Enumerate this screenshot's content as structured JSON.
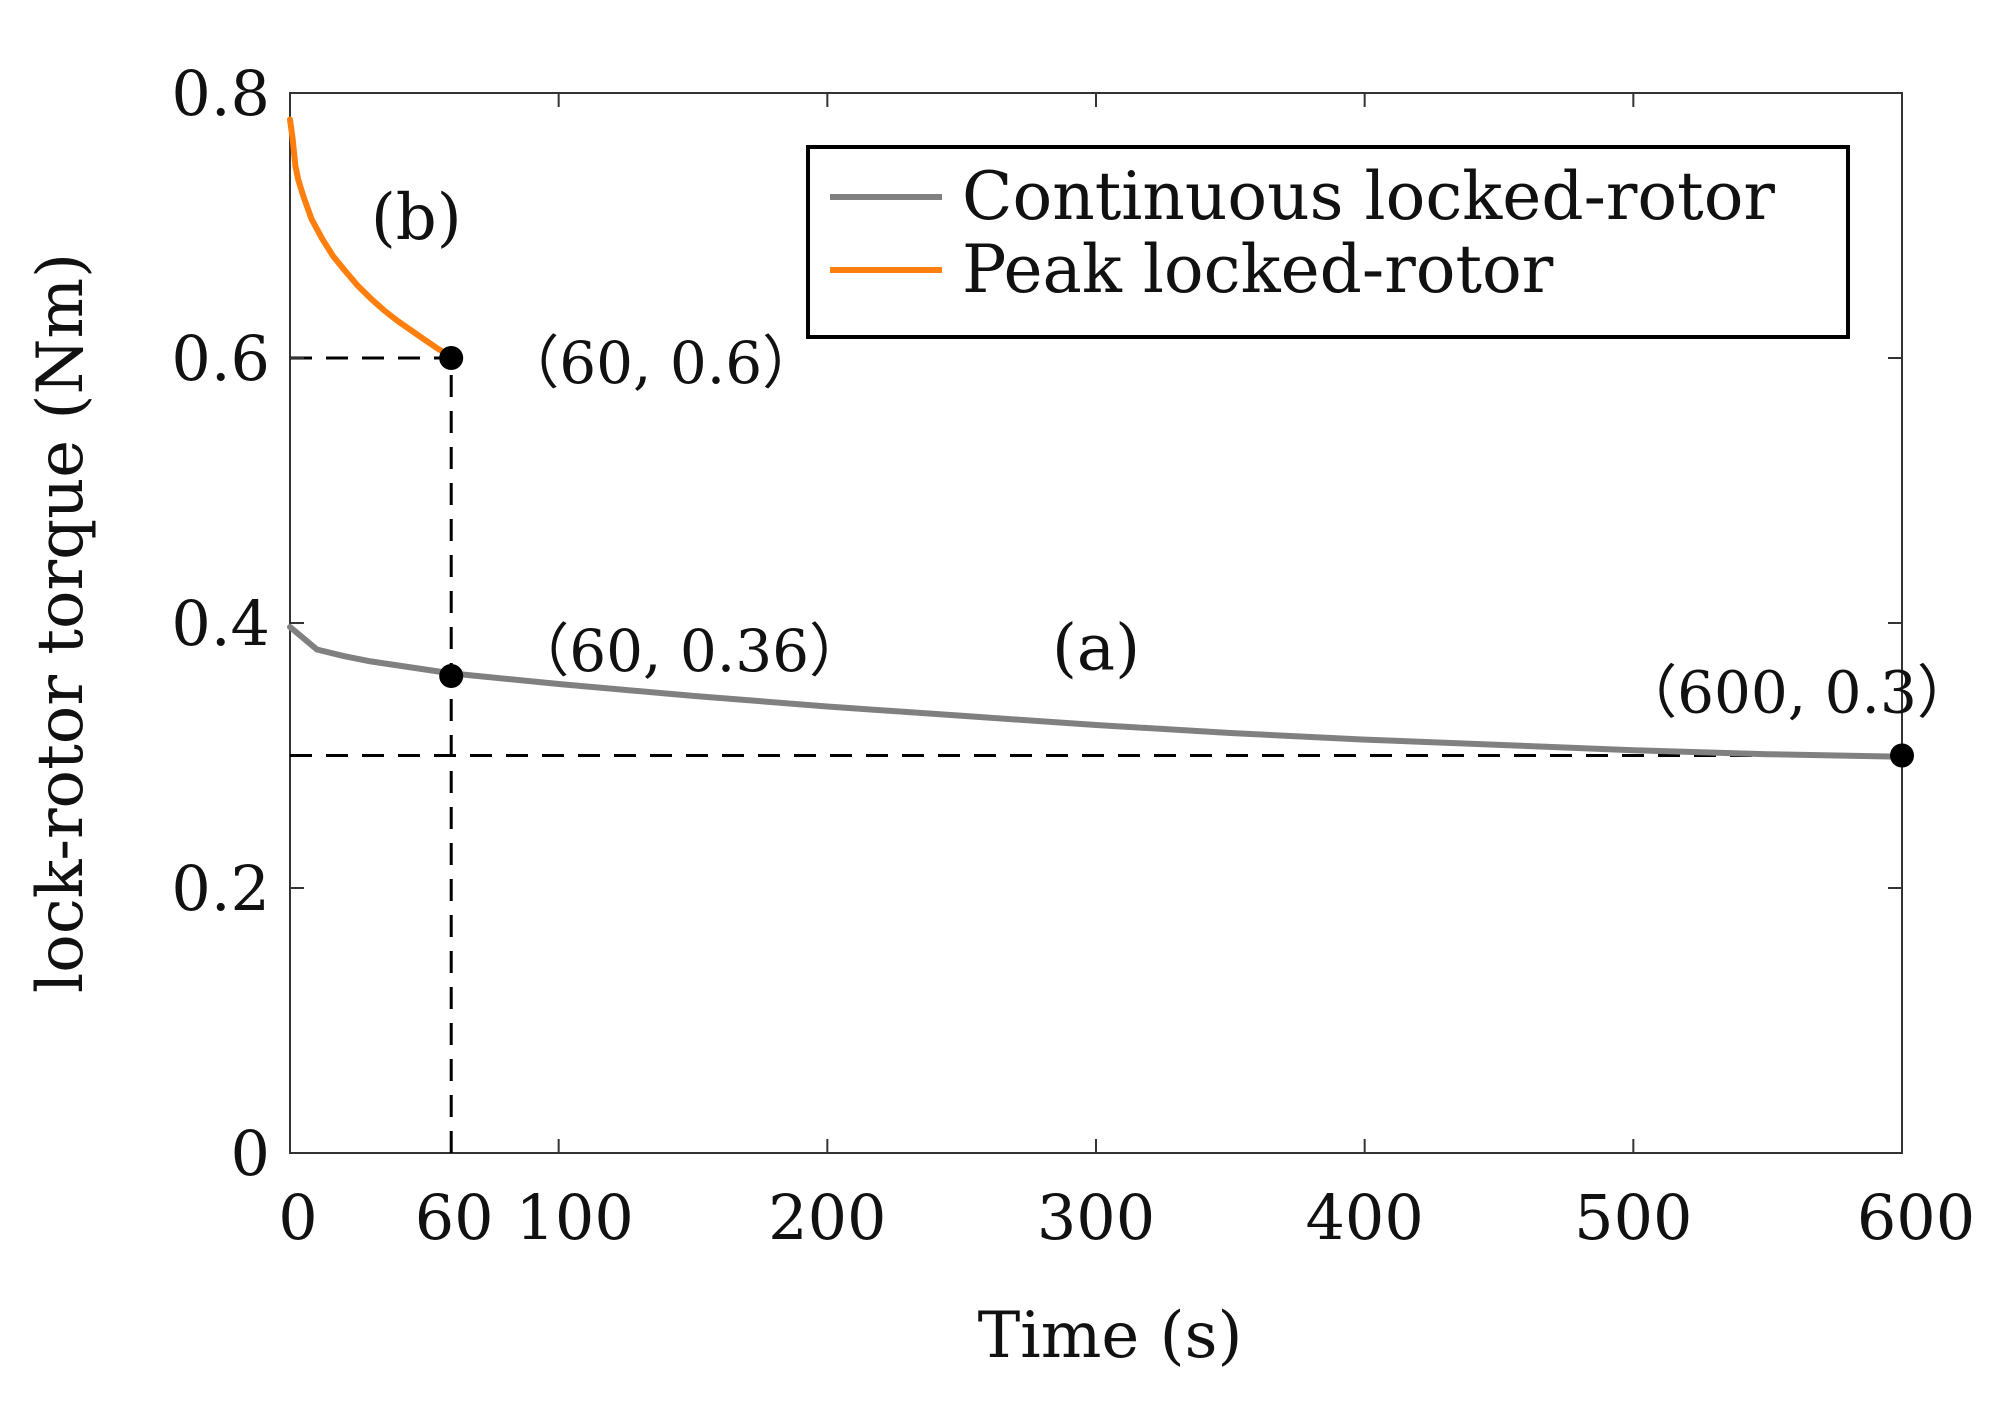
{
  "chart_data": {
    "type": "line",
    "title": "",
    "xlabel": "Time (s)",
    "ylabel": "lock-rotor torque (Nm)",
    "xlim": [
      0,
      600
    ],
    "ylim": [
      0,
      0.8
    ],
    "x_ticks": [
      0,
      60,
      100,
      200,
      300,
      400,
      500,
      600
    ],
    "x_tick_labels": [
      "0",
      "60",
      "100",
      "200",
      "300",
      "400",
      "500",
      "600"
    ],
    "y_ticks": [
      0,
      0.2,
      0.4,
      0.6,
      0.8
    ],
    "y_tick_labels": [
      "0",
      "0.2",
      "0.4",
      "0.6",
      "0.8"
    ],
    "grid": false,
    "legend_position": "top-right",
    "series": [
      {
        "name": "Continuous locked-rotor",
        "color": "#808080",
        "x": [
          0,
          10,
          20,
          30,
          40,
          50,
          60,
          100,
          150,
          200,
          250,
          300,
          350,
          400,
          450,
          500,
          550,
          600
        ],
        "y": [
          0.397,
          0.38,
          0.375,
          0.371,
          0.368,
          0.365,
          0.362,
          0.354,
          0.345,
          0.337,
          0.33,
          0.323,
          0.317,
          0.312,
          0.308,
          0.304,
          0.301,
          0.299
        ]
      },
      {
        "name": "Peak locked-rotor",
        "color": "#FF7F0E",
        "x": [
          0,
          1,
          2,
          3,
          5,
          8,
          12,
          16,
          20,
          25,
          30,
          35,
          40,
          45,
          50,
          55,
          60
        ],
        "y": [
          0.78,
          0.765,
          0.745,
          0.735,
          0.722,
          0.705,
          0.69,
          0.677,
          0.667,
          0.655,
          0.645,
          0.636,
          0.628,
          0.621,
          0.614,
          0.607,
          0.601
        ]
      }
    ],
    "markers": [
      {
        "x": 60,
        "y": 0.6,
        "label": "（60, 0.6）"
      },
      {
        "x": 60,
        "y": 0.36,
        "label": "（60, 0.36）"
      },
      {
        "x": 600,
        "y": 0.3,
        "label": "（600, 0.3）"
      }
    ],
    "reference_lines": [
      {
        "orientation": "horizontal",
        "y": 0.6,
        "x_from": 0,
        "x_to": 60
      },
      {
        "orientation": "vertical",
        "x": 60,
        "y_from": 0,
        "y_to": 0.6
      },
      {
        "orientation": "horizontal",
        "y": 0.3,
        "x_from": 0,
        "x_to": 600
      }
    ],
    "annotations": [
      {
        "text": "(a)",
        "x": 300,
        "y": 0.365
      },
      {
        "text": "(b)",
        "x": 47,
        "y": 0.69
      }
    ]
  }
}
